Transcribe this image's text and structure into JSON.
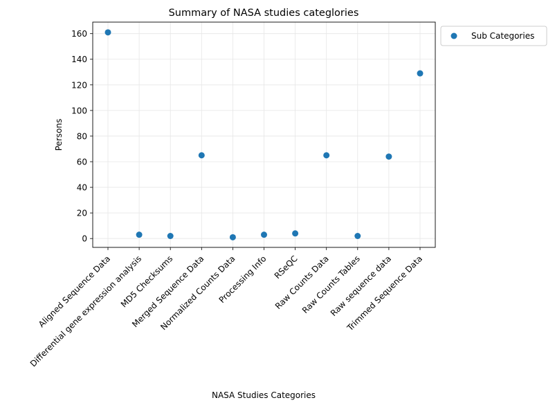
{
  "chart_data": {
    "type": "scatter",
    "title": "Summary of NASA studies categlories",
    "xlabel": "NASA Studies Categories",
    "ylabel": "Persons",
    "categories": [
      "Aligned Sequence Data",
      "Differential gene expression analysis",
      "MD5 Checksums",
      "Merged Sequence Data",
      "Normalized Counts Data",
      "Processing Info",
      "RSeQC",
      "Raw Counts Data",
      "Raw Counts Tables",
      "Raw sequence data",
      "Trimmed Sequence Data"
    ],
    "series": [
      {
        "name": "Sub Categories",
        "color": "#1f77b4",
        "values": [
          161,
          3,
          2,
          65,
          1,
          3,
          4,
          65,
          2,
          64,
          129
        ]
      }
    ],
    "ylim": [
      -6.9,
      169
    ],
    "yticks": [
      0,
      20,
      40,
      60,
      80,
      100,
      120,
      140,
      160
    ],
    "grid": true,
    "legend_position": "outside-top-right"
  }
}
